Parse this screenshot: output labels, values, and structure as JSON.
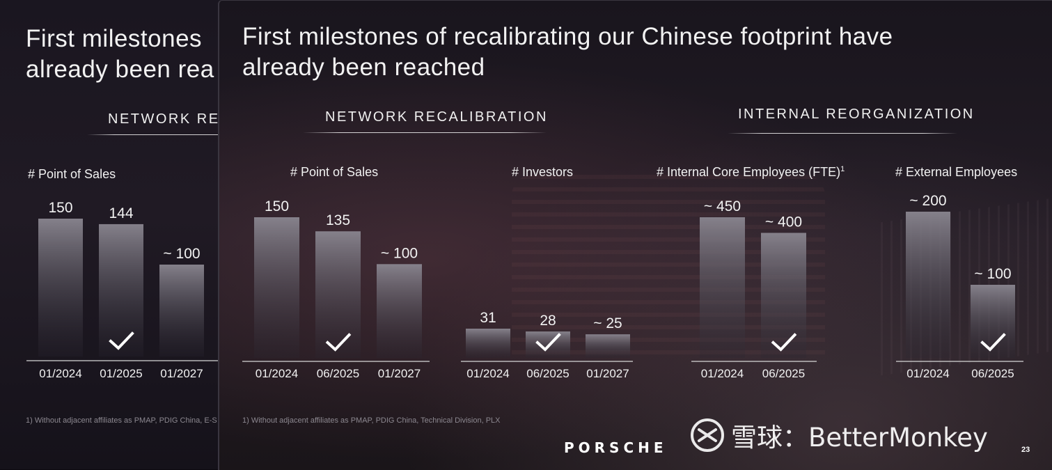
{
  "back_slide": {
    "title_line1": "First milestones",
    "title_line2": "already been rea",
    "section_label": "NETWORK REC",
    "chart_title": "# Point of Sales",
    "footnote": "1) Without adjacent affiliates as PMAP, PDIG China, E-S"
  },
  "slide": {
    "title_line1": "First milestones of recalibrating our Chinese footprint have",
    "title_line2": "already been reached",
    "section_network": "NETWORK RECALIBRATION",
    "section_internal": "INTERNAL REORGANIZATION",
    "footnote": "1) Without adjacent affiliates as PMAP, PDIG China, Technical Division, PLX",
    "brand": "PORSCHE",
    "page_number": "23"
  },
  "watermark": {
    "text": "雪球：BetterMonkey",
    "icon": "snowball-logo-icon"
  },
  "colors": {
    "bar_top": "#8a8690",
    "bar_bottom": "#2a2630",
    "text": "#f2f2f2",
    "axis": "#d8d8d8"
  },
  "chart_data": [
    {
      "type": "bar",
      "title": "# Point of Sales",
      "categories": [
        "01/2024",
        "01/2025",
        "01/2027"
      ],
      "values": [
        150,
        144,
        100
      ],
      "labels": [
        "150",
        "144",
        "~ 100"
      ],
      "checkmark_category": "01/2025"
    },
    {
      "type": "bar",
      "title": "# Point of Sales",
      "categories": [
        "01/2024",
        "06/2025",
        "01/2027"
      ],
      "values": [
        150,
        135,
        100
      ],
      "labels": [
        "150",
        "135",
        "~ 100"
      ],
      "checkmark_category": "06/2025"
    },
    {
      "type": "bar",
      "title": "# Investors",
      "categories": [
        "01/2024",
        "06/2025",
        "01/2027"
      ],
      "values": [
        31,
        28,
        25
      ],
      "labels": [
        "31",
        "28",
        "~ 25"
      ],
      "checkmark_category": "06/2025"
    },
    {
      "type": "bar",
      "title": "# Internal Core Employees (FTE)",
      "title_superscript": "1",
      "categories": [
        "01/2024",
        "06/2025"
      ],
      "values": [
        450,
        400
      ],
      "labels": [
        "~ 450",
        "~ 400"
      ],
      "checkmark_category": "06/2025"
    },
    {
      "type": "bar",
      "title": "# External Employees",
      "categories": [
        "01/2024",
        "06/2025"
      ],
      "values": [
        200,
        100
      ],
      "labels": [
        "~ 200",
        "~ 100"
      ],
      "checkmark_category": "06/2025"
    }
  ]
}
